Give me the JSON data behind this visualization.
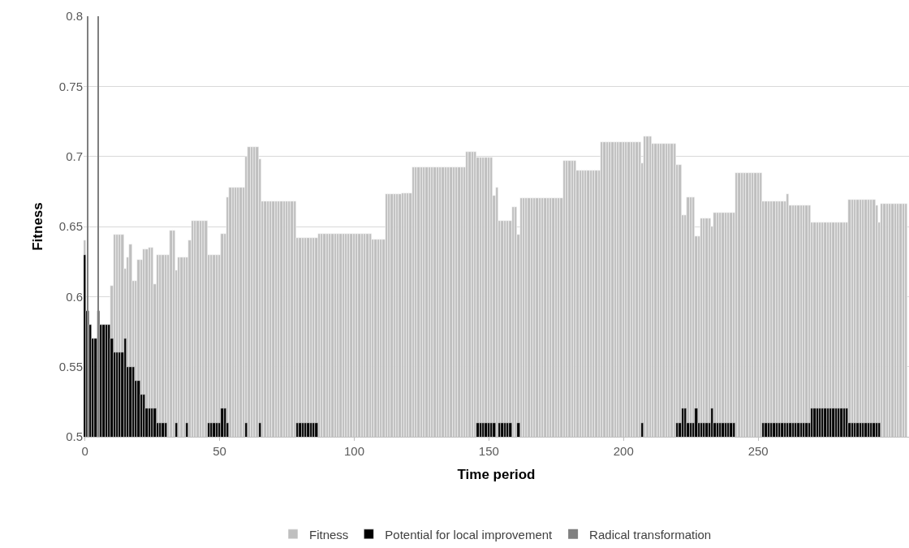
{
  "chart_data": {
    "type": "bar",
    "xlabel": "Time period",
    "ylabel": "Fitness",
    "xlim": [
      -0.5,
      306
    ],
    "xticks": [
      0,
      50,
      100,
      150,
      200,
      250
    ],
    "ylim": [
      0.5,
      0.8
    ],
    "yticks": [
      0.5,
      0.55,
      0.6,
      0.65,
      0.7,
      0.75,
      0.8
    ],
    "grid": "y",
    "legend": "bottom",
    "series": [
      {
        "name": "Fitness",
        "color": "#bfbfbf",
        "x": [
          0,
          10,
          11,
          12,
          13,
          14,
          15,
          16,
          17,
          18,
          19,
          20,
          21,
          22,
          23,
          24,
          25,
          26,
          27,
          28,
          29,
          30,
          31,
          32,
          33,
          34,
          35,
          36,
          37,
          38,
          39,
          40,
          41,
          42,
          43,
          44,
          45,
          46,
          47,
          48,
          49,
          50,
          51,
          52,
          53,
          54,
          55,
          56,
          57,
          58,
          59,
          60,
          61,
          62,
          63,
          64,
          65,
          66,
          67,
          68,
          69,
          70,
          71,
          72,
          73,
          74,
          75,
          76,
          77,
          78,
          79,
          80,
          81,
          82,
          83,
          84,
          85,
          86,
          87,
          88,
          89,
          90,
          91,
          92,
          93,
          94,
          95,
          96,
          97,
          98,
          99,
          100,
          101,
          102,
          103,
          104,
          105,
          106,
          107,
          108,
          109,
          110,
          111,
          112,
          113,
          114,
          115,
          116,
          117,
          118,
          119,
          120,
          121,
          122,
          123,
          124,
          125,
          126,
          127,
          128,
          129,
          130,
          131,
          132,
          133,
          134,
          135,
          136,
          137,
          138,
          139,
          140,
          141,
          142,
          143,
          144,
          145,
          146,
          147,
          148,
          149,
          150,
          151,
          152,
          153,
          154,
          155,
          156,
          157,
          158,
          159,
          160,
          161,
          162,
          163,
          164,
          165,
          166,
          167,
          168,
          169,
          170,
          171,
          172,
          173,
          174,
          175,
          176,
          177,
          178,
          179,
          180,
          181,
          182,
          183,
          184,
          185,
          186,
          187,
          188,
          189,
          190,
          191,
          192,
          193,
          194,
          195,
          196,
          197,
          198,
          199,
          200,
          201,
          202,
          203,
          204,
          205,
          206,
          207,
          208,
          209,
          210,
          211,
          212,
          213,
          214,
          215,
          216,
          217,
          218,
          219,
          220,
          221,
          222,
          223,
          224,
          225,
          226,
          227,
          228,
          229,
          230,
          231,
          232,
          233,
          234,
          235,
          236,
          237,
          238,
          239,
          240,
          241,
          242,
          243,
          244,
          245,
          246,
          247,
          248,
          249,
          250,
          251,
          252,
          253,
          254,
          255,
          256,
          257,
          258,
          259,
          260,
          261,
          262,
          263,
          264,
          265,
          266,
          267,
          268,
          269,
          270,
          271,
          272,
          273,
          274,
          275,
          276,
          277,
          278,
          279,
          280,
          281,
          282,
          283,
          284,
          285,
          286,
          287,
          288,
          289,
          290,
          291,
          292,
          293,
          294,
          295,
          296,
          297,
          298,
          299,
          300,
          301,
          302,
          303,
          304,
          305
        ],
        "values": [
          0.64,
          0.608,
          0.644,
          0.644,
          0.644,
          0.644,
          0.62,
          0.628,
          0.637,
          0.611,
          0.611,
          0.626,
          0.626,
          0.634,
          0.634,
          0.635,
          0.635,
          0.609,
          0.63,
          0.63,
          0.63,
          0.63,
          0.63,
          0.647,
          0.647,
          0.619,
          0.628,
          0.628,
          0.628,
          0.628,
          0.64,
          0.654,
          0.654,
          0.654,
          0.654,
          0.654,
          0.654,
          0.63,
          0.63,
          0.63,
          0.63,
          0.63,
          0.645,
          0.645,
          0.671,
          0.678,
          0.678,
          0.678,
          0.678,
          0.678,
          0.678,
          0.7,
          0.707,
          0.707,
          0.707,
          0.707,
          0.698,
          0.668,
          0.668,
          0.668,
          0.668,
          0.668,
          0.668,
          0.668,
          0.668,
          0.668,
          0.668,
          0.668,
          0.668,
          0.668,
          0.642,
          0.642,
          0.642,
          0.642,
          0.642,
          0.642,
          0.642,
          0.642,
          0.645,
          0.645,
          0.645,
          0.645,
          0.645,
          0.645,
          0.645,
          0.645,
          0.645,
          0.645,
          0.645,
          0.645,
          0.645,
          0.645,
          0.645,
          0.645,
          0.645,
          0.645,
          0.645,
          0.645,
          0.641,
          0.641,
          0.641,
          0.641,
          0.641,
          0.673,
          0.673,
          0.673,
          0.673,
          0.673,
          0.673,
          0.674,
          0.674,
          0.674,
          0.674,
          0.692,
          0.692,
          0.692,
          0.692,
          0.692,
          0.692,
          0.692,
          0.692,
          0.692,
          0.692,
          0.692,
          0.692,
          0.692,
          0.692,
          0.692,
          0.692,
          0.692,
          0.692,
          0.692,
          0.692,
          0.703,
          0.703,
          0.703,
          0.703,
          0.699,
          0.699,
          0.699,
          0.699,
          0.699,
          0.699,
          0.672,
          0.678,
          0.654,
          0.654,
          0.654,
          0.654,
          0.654,
          0.664,
          0.664,
          0.644,
          0.67,
          0.67,
          0.67,
          0.67,
          0.67,
          0.67,
          0.67,
          0.67,
          0.67,
          0.67,
          0.67,
          0.67,
          0.67,
          0.67,
          0.67,
          0.67,
          0.697,
          0.697,
          0.697,
          0.697,
          0.697,
          0.69,
          0.69,
          0.69,
          0.69,
          0.69,
          0.69,
          0.69,
          0.69,
          0.69,
          0.71,
          0.71,
          0.71,
          0.71,
          0.71,
          0.71,
          0.71,
          0.71,
          0.71,
          0.71,
          0.71,
          0.71,
          0.71,
          0.71,
          0.71,
          0.695,
          0.714,
          0.714,
          0.714,
          0.709,
          0.709,
          0.709,
          0.709,
          0.709,
          0.709,
          0.709,
          0.709,
          0.709,
          0.694,
          0.694,
          0.658,
          0.658,
          0.671,
          0.671,
          0.671,
          0.643,
          0.643,
          0.656,
          0.656,
          0.656,
          0.656,
          0.65,
          0.66,
          0.66,
          0.66,
          0.66,
          0.66,
          0.66,
          0.66,
          0.66,
          0.688,
          0.688,
          0.688,
          0.688,
          0.688,
          0.688,
          0.688,
          0.688,
          0.688,
          0.688,
          0.668,
          0.668,
          0.668,
          0.668,
          0.668,
          0.668,
          0.668,
          0.668,
          0.668,
          0.673,
          0.665,
          0.665,
          0.665,
          0.665,
          0.665,
          0.665,
          0.665,
          0.665,
          0.653,
          0.653,
          0.653,
          0.653,
          0.653,
          0.653,
          0.653,
          0.653,
          0.653,
          0.653,
          0.653,
          0.653,
          0.653,
          0.653,
          0.669,
          0.669,
          0.669,
          0.669,
          0.669,
          0.669,
          0.669,
          0.669,
          0.669,
          0.669,
          0.665,
          0.653,
          0.666,
          0.666,
          0.666,
          0.666,
          0.666,
          0.666,
          0.666,
          0.666,
          0.666,
          0.666
        ]
      },
      {
        "name": "Potential for local improvement",
        "color": "#000000",
        "x": [
          0,
          1,
          2,
          3,
          4,
          5,
          6,
          7,
          8,
          9,
          10,
          11,
          12,
          13,
          14,
          15,
          16,
          17,
          18,
          19,
          20,
          21,
          22,
          23,
          24,
          25,
          26,
          27,
          28,
          29,
          30,
          34,
          38,
          46,
          47,
          48,
          49,
          50,
          51,
          52,
          53,
          60,
          65,
          79,
          80,
          81,
          82,
          83,
          84,
          85,
          86,
          146,
          147,
          148,
          149,
          150,
          151,
          152,
          154,
          155,
          156,
          157,
          158,
          161,
          207,
          220,
          221,
          222,
          223,
          224,
          225,
          226,
          227,
          228,
          229,
          230,
          231,
          232,
          233,
          234,
          235,
          236,
          237,
          238,
          239,
          240,
          241,
          252,
          253,
          254,
          255,
          256,
          257,
          258,
          259,
          260,
          261,
          262,
          263,
          264,
          265,
          266,
          267,
          268,
          269,
          270,
          271,
          272,
          273,
          274,
          275,
          276,
          277,
          278,
          279,
          280,
          281,
          282,
          283,
          284,
          285,
          286,
          287,
          288,
          289,
          290,
          291,
          292,
          293,
          294,
          295
        ],
        "values": [
          0.63,
          0.59,
          0.58,
          0.57,
          0.57,
          0.59,
          0.58,
          0.58,
          0.58,
          0.58,
          0.57,
          0.56,
          0.56,
          0.56,
          0.56,
          0.57,
          0.55,
          0.55,
          0.55,
          0.54,
          0.54,
          0.53,
          0.53,
          0.52,
          0.52,
          0.52,
          0.52,
          0.51,
          0.51,
          0.51,
          0.51,
          0.51,
          0.51,
          0.51,
          0.51,
          0.51,
          0.51,
          0.51,
          0.52,
          0.52,
          0.51,
          0.51,
          0.51,
          0.51,
          0.51,
          0.51,
          0.51,
          0.51,
          0.51,
          0.51,
          0.51,
          0.51,
          0.51,
          0.51,
          0.51,
          0.51,
          0.51,
          0.51,
          0.51,
          0.51,
          0.51,
          0.51,
          0.51,
          0.51,
          0.51,
          0.51,
          0.51,
          0.52,
          0.52,
          0.51,
          0.51,
          0.51,
          0.52,
          0.51,
          0.51,
          0.51,
          0.51,
          0.51,
          0.52,
          0.51,
          0.51,
          0.51,
          0.51,
          0.51,
          0.51,
          0.51,
          0.51,
          0.51,
          0.51,
          0.51,
          0.51,
          0.51,
          0.51,
          0.51,
          0.51,
          0.51,
          0.51,
          0.51,
          0.51,
          0.51,
          0.51,
          0.51,
          0.51,
          0.51,
          0.51,
          0.52,
          0.52,
          0.52,
          0.52,
          0.52,
          0.52,
          0.52,
          0.52,
          0.52,
          0.52,
          0.52,
          0.52,
          0.52,
          0.52,
          0.51,
          0.51,
          0.51,
          0.51,
          0.51,
          0.51,
          0.51,
          0.51,
          0.51,
          0.51,
          0.51,
          0.51
        ]
      },
      {
        "name": "Radical transformation",
        "color": "#7f7f7f",
        "x": [
          1,
          5
        ],
        "values": [
          0.8,
          0.8
        ]
      }
    ]
  }
}
